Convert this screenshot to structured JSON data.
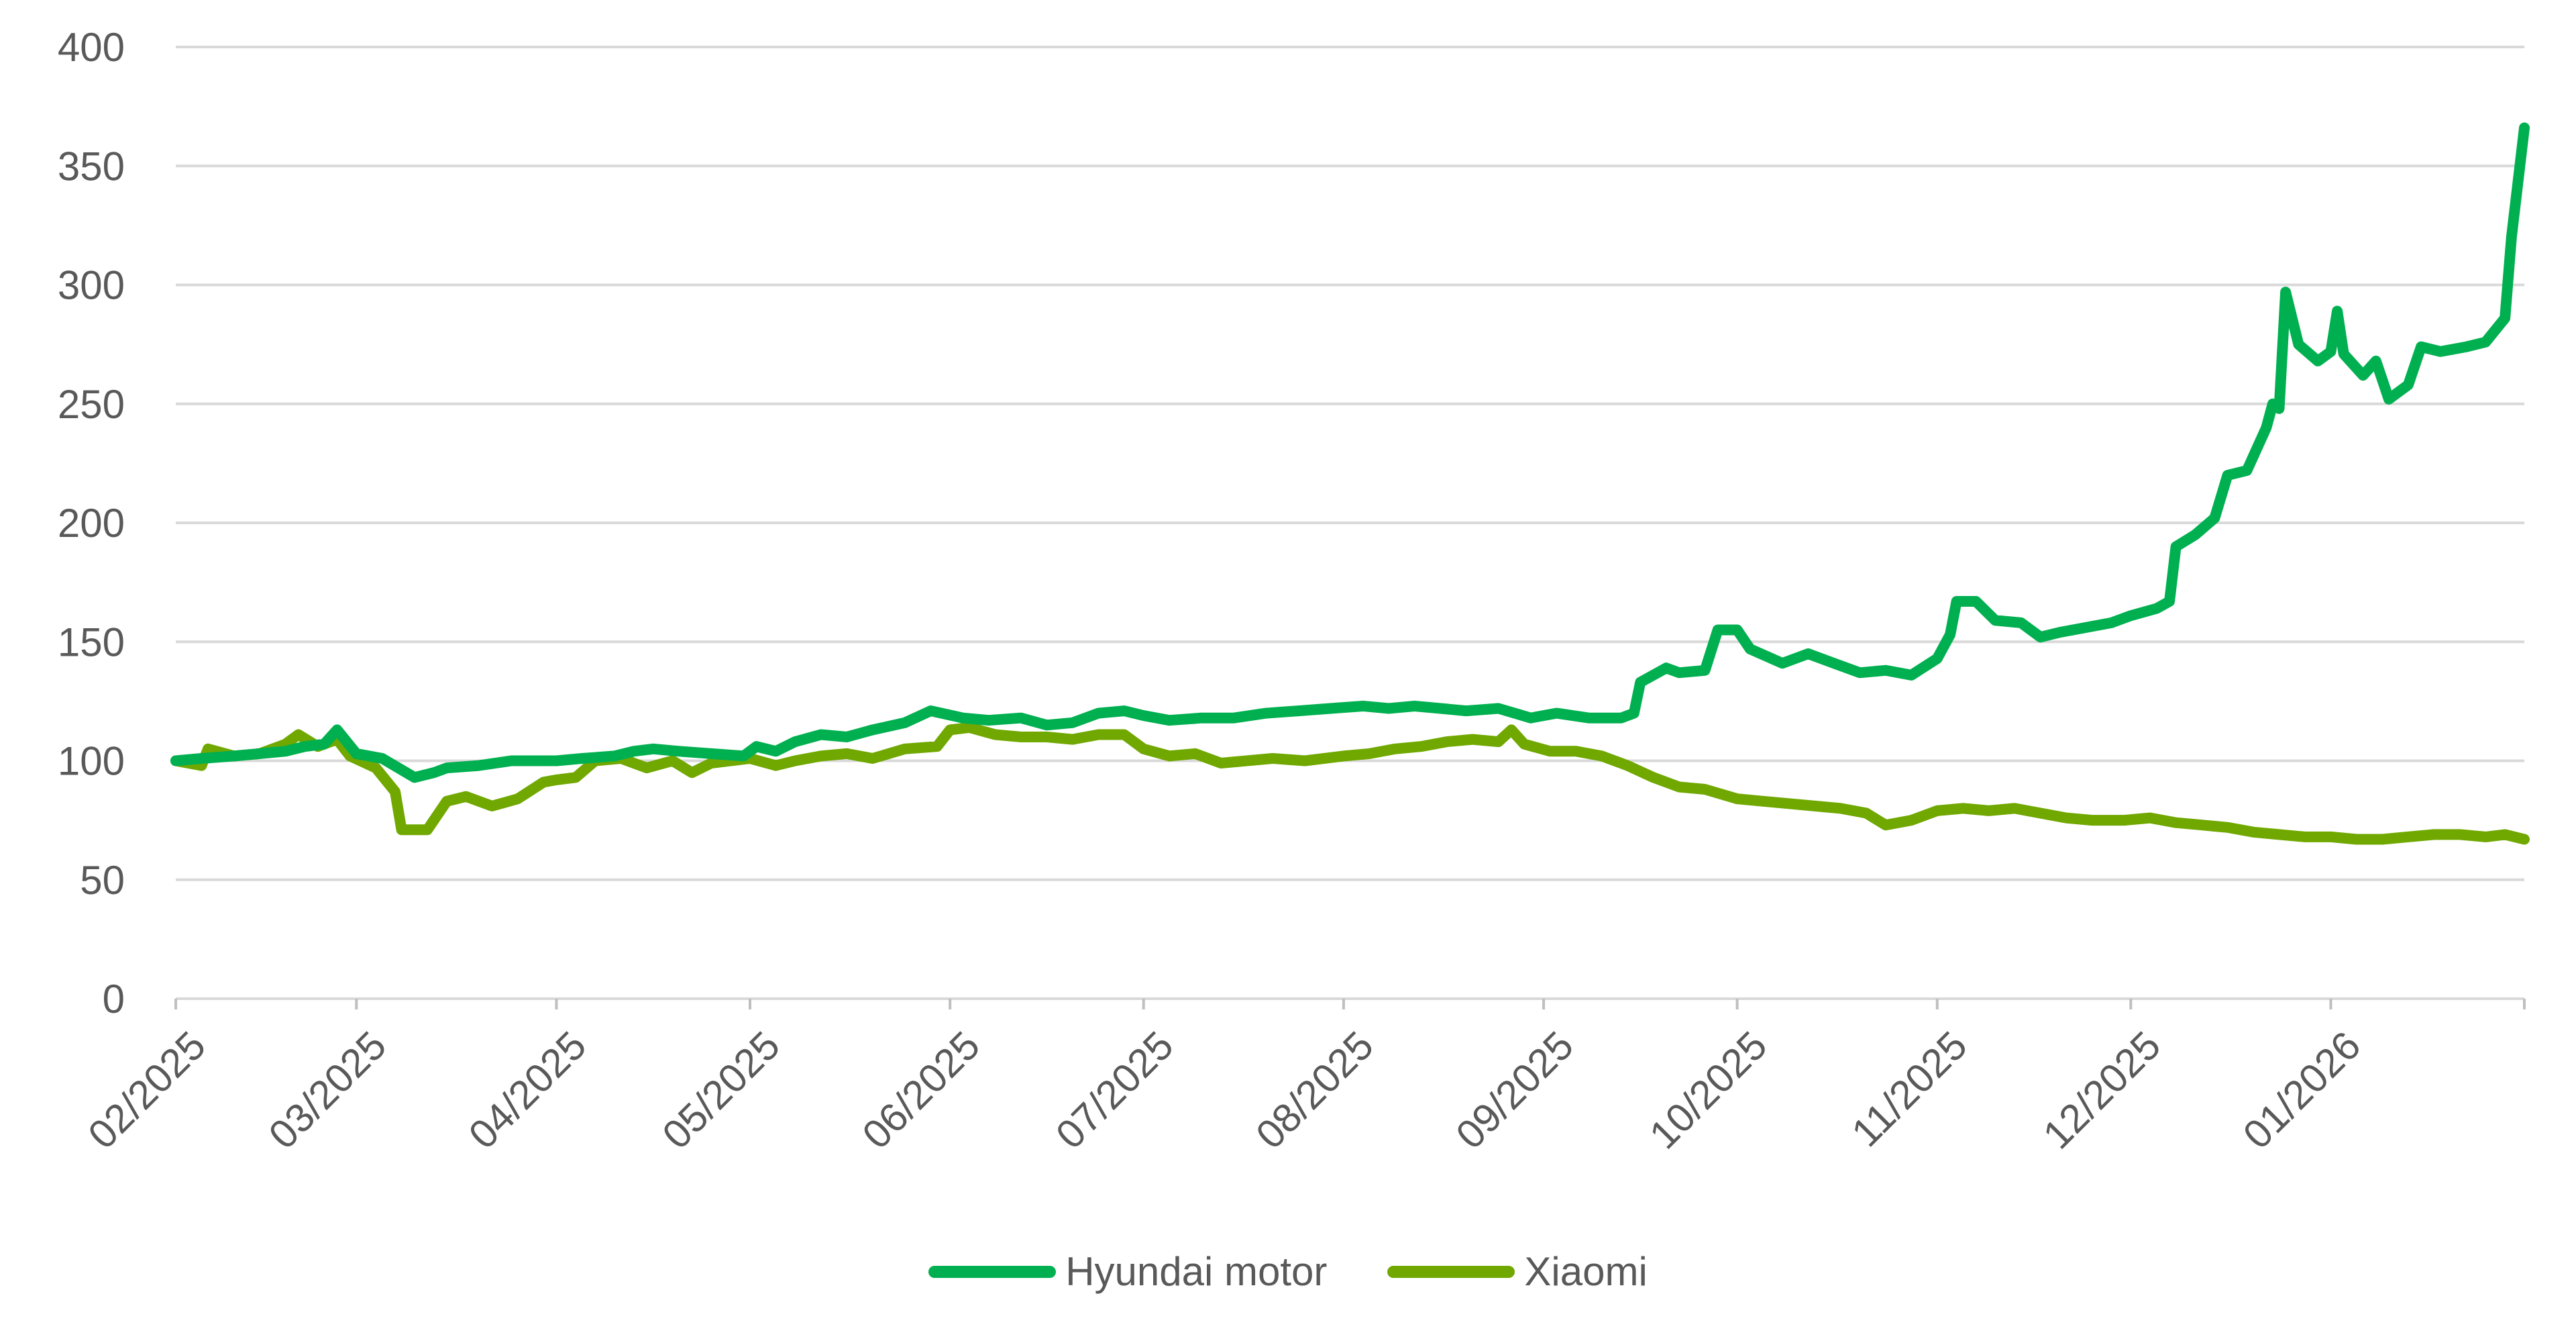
{
  "chart_data": {
    "type": "line",
    "title": "",
    "xlabel": "",
    "ylabel": "",
    "ylim": [
      0,
      400
    ],
    "yticks": [
      0,
      50,
      100,
      150,
      200,
      250,
      300,
      350,
      400
    ],
    "xlim": [
      "2025-02-01",
      "2026-01-31"
    ],
    "xticks": [
      {
        "date": "2025-02-01",
        "label": "02/2025"
      },
      {
        "date": "2025-03-01",
        "label": "03/2025"
      },
      {
        "date": "2025-04-01",
        "label": "04/2025"
      },
      {
        "date": "2025-05-01",
        "label": "05/2025"
      },
      {
        "date": "2025-06-01",
        "label": "06/2025"
      },
      {
        "date": "2025-07-01",
        "label": "07/2025"
      },
      {
        "date": "2025-08-01",
        "label": "08/2025"
      },
      {
        "date": "2025-09-01",
        "label": "09/2025"
      },
      {
        "date": "2025-10-01",
        "label": "10/2025"
      },
      {
        "date": "2025-11-01",
        "label": "11/2025"
      },
      {
        "date": "2025-12-01",
        "label": "12/2025"
      },
      {
        "date": "2026-01-01",
        "label": "01/2026"
      }
    ],
    "grid": true,
    "legend_position": "bottom",
    "series": [
      {
        "name": "Hyundai motor",
        "color": "#00B050",
        "points": [
          [
            "2025-02-01",
            100
          ],
          [
            "2025-02-05",
            101
          ],
          [
            "2025-02-10",
            102
          ],
          [
            "2025-02-14",
            103
          ],
          [
            "2025-02-18",
            104
          ],
          [
            "2025-02-21",
            106
          ],
          [
            "2025-02-24",
            107
          ],
          [
            "2025-02-26",
            113
          ],
          [
            "2025-03-01",
            103
          ],
          [
            "2025-03-05",
            101
          ],
          [
            "2025-03-10",
            93
          ],
          [
            "2025-03-13",
            95
          ],
          [
            "2025-03-15",
            97
          ],
          [
            "2025-03-20",
            98
          ],
          [
            "2025-03-25",
            100
          ],
          [
            "2025-04-01",
            100
          ],
          [
            "2025-04-05",
            101
          ],
          [
            "2025-04-10",
            102
          ],
          [
            "2025-04-13",
            104
          ],
          [
            "2025-04-16",
            105
          ],
          [
            "2025-04-20",
            104
          ],
          [
            "2025-04-25",
            103
          ],
          [
            "2025-04-30",
            102
          ],
          [
            "2025-05-02",
            106
          ],
          [
            "2025-05-05",
            104
          ],
          [
            "2025-05-08",
            108
          ],
          [
            "2025-05-12",
            111
          ],
          [
            "2025-05-16",
            110
          ],
          [
            "2025-05-20",
            113
          ],
          [
            "2025-05-25",
            116
          ],
          [
            "2025-05-29",
            121
          ],
          [
            "2025-06-03",
            118
          ],
          [
            "2025-06-07",
            117
          ],
          [
            "2025-06-12",
            118
          ],
          [
            "2025-06-16",
            115
          ],
          [
            "2025-06-20",
            116
          ],
          [
            "2025-06-24",
            120
          ],
          [
            "2025-06-28",
            121
          ],
          [
            "2025-07-01",
            119
          ],
          [
            "2025-07-05",
            117
          ],
          [
            "2025-07-10",
            118
          ],
          [
            "2025-07-15",
            118
          ],
          [
            "2025-07-20",
            120
          ],
          [
            "2025-07-25",
            121
          ],
          [
            "2025-07-30",
            122
          ],
          [
            "2025-08-04",
            123
          ],
          [
            "2025-08-08",
            122
          ],
          [
            "2025-08-12",
            123
          ],
          [
            "2025-08-16",
            122
          ],
          [
            "2025-08-20",
            121
          ],
          [
            "2025-08-25",
            122
          ],
          [
            "2025-08-30",
            118
          ],
          [
            "2025-09-03",
            120
          ],
          [
            "2025-09-08",
            118
          ],
          [
            "2025-09-13",
            118
          ],
          [
            "2025-09-15",
            120
          ],
          [
            "2025-09-16",
            133
          ],
          [
            "2025-09-20",
            139
          ],
          [
            "2025-09-22",
            137
          ],
          [
            "2025-09-26",
            138
          ],
          [
            "2025-09-28",
            155
          ],
          [
            "2025-10-01",
            155
          ],
          [
            "2025-10-03",
            147
          ],
          [
            "2025-10-08",
            141
          ],
          [
            "2025-10-12",
            145
          ],
          [
            "2025-10-16",
            141
          ],
          [
            "2025-10-20",
            137
          ],
          [
            "2025-10-24",
            138
          ],
          [
            "2025-10-28",
            136
          ],
          [
            "2025-11-01",
            143
          ],
          [
            "2025-11-03",
            153
          ],
          [
            "2025-11-04",
            167
          ],
          [
            "2025-11-07",
            167
          ],
          [
            "2025-11-10",
            159
          ],
          [
            "2025-11-14",
            158
          ],
          [
            "2025-11-17",
            152
          ],
          [
            "2025-11-20",
            154
          ],
          [
            "2025-11-24",
            156
          ],
          [
            "2025-11-28",
            158
          ],
          [
            "2025-12-01",
            161
          ],
          [
            "2025-12-05",
            164
          ],
          [
            "2025-12-07",
            167
          ],
          [
            "2025-12-08",
            190
          ],
          [
            "2025-12-11",
            195
          ],
          [
            "2025-12-14",
            202
          ],
          [
            "2025-12-16",
            220
          ],
          [
            "2025-12-19",
            222
          ],
          [
            "2025-12-22",
            240
          ],
          [
            "2025-12-23",
            250
          ],
          [
            "2025-12-24",
            248
          ],
          [
            "2025-12-25",
            297
          ],
          [
            "2025-12-27",
            275
          ],
          [
            "2025-12-30",
            268
          ],
          [
            "2026-01-01",
            272
          ],
          [
            "2026-01-02",
            289
          ],
          [
            "2026-01-03",
            271
          ],
          [
            "2026-01-06",
            262
          ],
          [
            "2026-01-08",
            268
          ],
          [
            "2026-01-09",
            260
          ],
          [
            "2026-01-10",
            252
          ],
          [
            "2026-01-13",
            258
          ],
          [
            "2026-01-15",
            274
          ],
          [
            "2026-01-18",
            272
          ],
          [
            "2026-01-22",
            274
          ],
          [
            "2026-01-25",
            276
          ],
          [
            "2026-01-28",
            286
          ],
          [
            "2026-01-29",
            320
          ],
          [
            "2026-01-31",
            366
          ]
        ]
      },
      {
        "name": "Xiaomi",
        "color": "#70A800",
        "points": [
          [
            "2025-02-01",
            100
          ],
          [
            "2025-02-05",
            98
          ],
          [
            "2025-02-06",
            105
          ],
          [
            "2025-02-10",
            102
          ],
          [
            "2025-02-14",
            103
          ],
          [
            "2025-02-18",
            107
          ],
          [
            "2025-02-20",
            111
          ],
          [
            "2025-02-23",
            106
          ],
          [
            "2025-02-26",
            109
          ],
          [
            "2025-02-28",
            102
          ],
          [
            "2025-03-04",
            97
          ],
          [
            "2025-03-07",
            87
          ],
          [
            "2025-03-08",
            71
          ],
          [
            "2025-03-12",
            71
          ],
          [
            "2025-03-15",
            83
          ],
          [
            "2025-03-18",
            85
          ],
          [
            "2025-03-22",
            81
          ],
          [
            "2025-03-26",
            84
          ],
          [
            "2025-03-30",
            91
          ],
          [
            "2025-04-01",
            92
          ],
          [
            "2025-04-04",
            93
          ],
          [
            "2025-04-07",
            100
          ],
          [
            "2025-04-11",
            101
          ],
          [
            "2025-04-15",
            97
          ],
          [
            "2025-04-19",
            100
          ],
          [
            "2025-04-22",
            95
          ],
          [
            "2025-04-25",
            99
          ],
          [
            "2025-05-01",
            101
          ],
          [
            "2025-05-05",
            98
          ],
          [
            "2025-05-08",
            100
          ],
          [
            "2025-05-12",
            102
          ],
          [
            "2025-05-16",
            103
          ],
          [
            "2025-05-20",
            101
          ],
          [
            "2025-05-25",
            105
          ],
          [
            "2025-05-30",
            106
          ],
          [
            "2025-06-01",
            113
          ],
          [
            "2025-06-04",
            114
          ],
          [
            "2025-06-08",
            111
          ],
          [
            "2025-06-12",
            110
          ],
          [
            "2025-06-16",
            110
          ],
          [
            "2025-06-20",
            109
          ],
          [
            "2025-06-24",
            111
          ],
          [
            "2025-06-28",
            111
          ],
          [
            "2025-07-01",
            105
          ],
          [
            "2025-07-05",
            102
          ],
          [
            "2025-07-09",
            103
          ],
          [
            "2025-07-13",
            99
          ],
          [
            "2025-07-17",
            100
          ],
          [
            "2025-07-21",
            101
          ],
          [
            "2025-07-26",
            100
          ],
          [
            "2025-08-01",
            102
          ],
          [
            "2025-08-05",
            103
          ],
          [
            "2025-08-09",
            105
          ],
          [
            "2025-08-13",
            106
          ],
          [
            "2025-08-17",
            108
          ],
          [
            "2025-08-21",
            109
          ],
          [
            "2025-08-25",
            108
          ],
          [
            "2025-08-27",
            113
          ],
          [
            "2025-08-29",
            107
          ],
          [
            "2025-09-02",
            104
          ],
          [
            "2025-09-06",
            104
          ],
          [
            "2025-09-10",
            102
          ],
          [
            "2025-09-14",
            98
          ],
          [
            "2025-09-18",
            93
          ],
          [
            "2025-09-22",
            89
          ],
          [
            "2025-09-26",
            88
          ],
          [
            "2025-10-01",
            84
          ],
          [
            "2025-10-05",
            83
          ],
          [
            "2025-10-09",
            82
          ],
          [
            "2025-10-13",
            81
          ],
          [
            "2025-10-17",
            80
          ],
          [
            "2025-10-21",
            78
          ],
          [
            "2025-10-24",
            73
          ],
          [
            "2025-10-28",
            75
          ],
          [
            "2025-11-01",
            79
          ],
          [
            "2025-11-05",
            80
          ],
          [
            "2025-11-09",
            79
          ],
          [
            "2025-11-13",
            80
          ],
          [
            "2025-11-17",
            78
          ],
          [
            "2025-11-21",
            76
          ],
          [
            "2025-11-25",
            75
          ],
          [
            "2025-11-30",
            75
          ],
          [
            "2025-12-04",
            76
          ],
          [
            "2025-12-08",
            74
          ],
          [
            "2025-12-12",
            73
          ],
          [
            "2025-12-16",
            72
          ],
          [
            "2025-12-20",
            70
          ],
          [
            "2025-12-24",
            69
          ],
          [
            "2025-12-28",
            68
          ],
          [
            "2026-01-01",
            68
          ],
          [
            "2026-01-05",
            67
          ],
          [
            "2026-01-09",
            67
          ],
          [
            "2026-01-13",
            68
          ],
          [
            "2026-01-17",
            69
          ],
          [
            "2026-01-21",
            69
          ],
          [
            "2026-01-25",
            68
          ],
          [
            "2026-01-28",
            69
          ],
          [
            "2026-01-31",
            67
          ]
        ]
      }
    ]
  }
}
